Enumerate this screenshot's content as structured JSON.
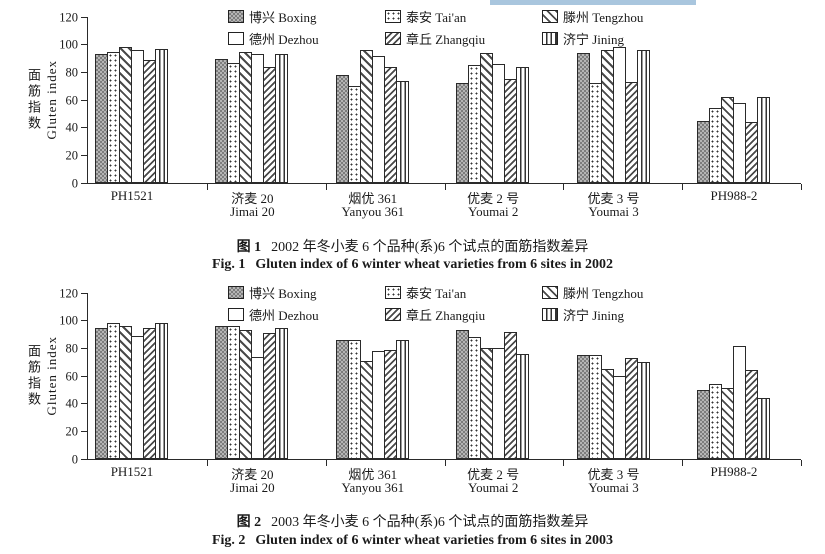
{
  "page": {
    "highlight_color": "#a9c6de"
  },
  "chart_data": [
    {
      "type": "bar",
      "year": "2002",
      "ylabel_zh": "面筋指数",
      "ylabel_en": "Gluten index",
      "ylim": [
        0,
        120
      ],
      "yticks": [
        0,
        20,
        40,
        60,
        80,
        100,
        120
      ],
      "grid": false,
      "legend_position": "top",
      "categories_zh": [
        "PH1521",
        "济麦 20",
        "烟优 361",
        "优麦 2 号",
        "优麦 3 号",
        "PH988-2"
      ],
      "categories_en": [
        "",
        "Jimai 20",
        "Yanyou 361",
        "Youmai 2",
        "Youmai 3",
        ""
      ],
      "series": [
        {
          "name_zh": "博兴",
          "name_en": "Boxing",
          "pattern": "checker",
          "values": [
            93,
            90,
            78,
            72,
            94,
            45
          ]
        },
        {
          "name_zh": "泰安",
          "name_en": "Tai'an",
          "pattern": "dots",
          "values": [
            95,
            87,
            70,
            85,
            72,
            54
          ]
        },
        {
          "name_zh": "滕州",
          "name_en": "Tengzhou",
          "pattern": "diag-up",
          "values": [
            98,
            95,
            96,
            94,
            96,
            62
          ]
        },
        {
          "name_zh": "德州",
          "name_en": "Dezhou",
          "pattern": "plain",
          "values": [
            96,
            93,
            92,
            86,
            98,
            58
          ]
        },
        {
          "name_zh": "章丘",
          "name_en": "Zhangqiu",
          "pattern": "diag-down",
          "values": [
            89,
            84,
            84,
            75,
            73,
            44
          ]
        },
        {
          "name_zh": "济宁",
          "name_en": "Jining",
          "pattern": "vertical",
          "values": [
            97,
            93,
            74,
            84,
            96,
            62
          ]
        }
      ],
      "caption_prefix_zh": "图 1",
      "caption_text_zh": "2002 年冬小麦 6 个品种(系)6 个试点的面筋指数差异",
      "caption_prefix_en": "Fig. 1",
      "caption_text_en": "Gluten index of 6 winter wheat varieties from 6 sites in 2002"
    },
    {
      "type": "bar",
      "year": "2003",
      "ylabel_zh": "面筋指数",
      "ylabel_en": "Gluten index",
      "ylim": [
        0,
        120
      ],
      "yticks": [
        0,
        20,
        40,
        60,
        80,
        100,
        120
      ],
      "grid": false,
      "legend_position": "top",
      "categories_zh": [
        "PH1521",
        "济麦 20",
        "烟优 361",
        "优麦 2 号",
        "优麦 3 号",
        "PH988-2"
      ],
      "categories_en": [
        "",
        "Jimai 20",
        "Yanyou 361",
        "Youmai 2",
        "Youmai 3",
        ""
      ],
      "series": [
        {
          "name_zh": "博兴",
          "name_en": "Boxing",
          "pattern": "checker",
          "values": [
            95,
            96,
            86,
            93,
            75,
            50
          ]
        },
        {
          "name_zh": "泰安",
          "name_en": "Tai'an",
          "pattern": "dots",
          "values": [
            98,
            96,
            86,
            88,
            75,
            54
          ]
        },
        {
          "name_zh": "滕州",
          "name_en": "Tengzhou",
          "pattern": "diag-up",
          "values": [
            96,
            93,
            71,
            80,
            65,
            51
          ]
        },
        {
          "name_zh": "德州",
          "name_en": "Dezhou",
          "pattern": "plain",
          "values": [
            89,
            74,
            78,
            80,
            60,
            82
          ]
        },
        {
          "name_zh": "章丘",
          "name_en": "Zhangqiu",
          "pattern": "diag-down",
          "values": [
            95,
            91,
            79,
            92,
            73,
            64
          ]
        },
        {
          "name_zh": "济宁",
          "name_en": "Jining",
          "pattern": "vertical",
          "values": [
            98,
            95,
            86,
            76,
            70,
            44
          ]
        }
      ],
      "caption_prefix_zh": "图 2",
      "caption_text_zh": "2003 年冬小麦 6 个品种(系)6 个试点的面筋指数差异",
      "caption_prefix_en": "Fig. 2",
      "caption_text_en": "Gluten index of 6 winter wheat varieties from 6 sites in 2003"
    }
  ]
}
